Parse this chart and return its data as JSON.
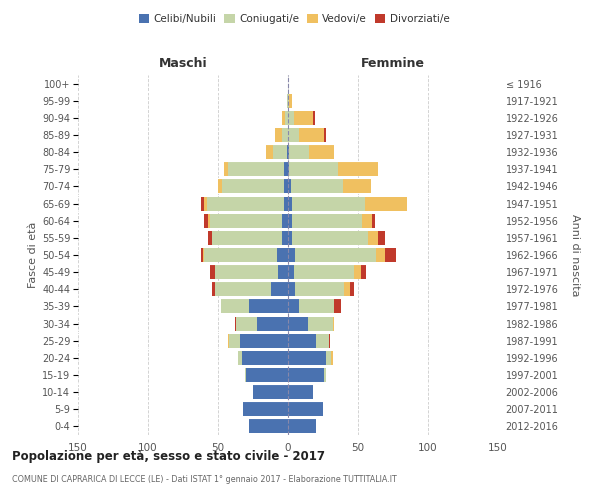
{
  "age_groups": [
    "0-4",
    "5-9",
    "10-14",
    "15-19",
    "20-24",
    "25-29",
    "30-34",
    "35-39",
    "40-44",
    "45-49",
    "50-54",
    "55-59",
    "60-64",
    "65-69",
    "70-74",
    "75-79",
    "80-84",
    "85-89",
    "90-94",
    "95-99",
    "100+"
  ],
  "birth_years": [
    "2012-2016",
    "2007-2011",
    "2002-2006",
    "1997-2001",
    "1992-1996",
    "1987-1991",
    "1982-1986",
    "1977-1981",
    "1972-1976",
    "1967-1971",
    "1962-1966",
    "1957-1961",
    "1952-1956",
    "1947-1951",
    "1942-1946",
    "1937-1941",
    "1932-1936",
    "1927-1931",
    "1922-1926",
    "1917-1921",
    "≤ 1916"
  ],
  "maschi": {
    "celibi": [
      28,
      32,
      25,
      30,
      33,
      34,
      22,
      28,
      12,
      7,
      8,
      4,
      4,
      3,
      3,
      3,
      1,
      0,
      0,
      0,
      0
    ],
    "coniugati": [
      0,
      0,
      0,
      1,
      3,
      8,
      15,
      20,
      40,
      45,
      52,
      50,
      52,
      55,
      44,
      40,
      10,
      4,
      2,
      1,
      0
    ],
    "vedovi": [
      0,
      0,
      0,
      0,
      0,
      1,
      0,
      0,
      0,
      0,
      1,
      0,
      1,
      2,
      3,
      3,
      5,
      5,
      2,
      0,
      0
    ],
    "divorziati": [
      0,
      0,
      0,
      0,
      0,
      0,
      1,
      0,
      2,
      4,
      1,
      3,
      3,
      2,
      0,
      0,
      0,
      0,
      0,
      0,
      0
    ]
  },
  "femmine": {
    "nubili": [
      20,
      25,
      18,
      26,
      27,
      20,
      14,
      8,
      5,
      4,
      5,
      3,
      3,
      3,
      2,
      1,
      1,
      0,
      0,
      0,
      0
    ],
    "coniugate": [
      0,
      0,
      0,
      1,
      4,
      9,
      18,
      25,
      35,
      43,
      58,
      54,
      50,
      52,
      37,
      35,
      14,
      8,
      4,
      1,
      0
    ],
    "vedove": [
      0,
      0,
      0,
      0,
      1,
      0,
      1,
      0,
      4,
      5,
      6,
      7,
      7,
      30,
      20,
      28,
      18,
      18,
      14,
      2,
      0
    ],
    "divorziate": [
      0,
      0,
      0,
      0,
      0,
      1,
      0,
      5,
      3,
      4,
      8,
      5,
      2,
      0,
      0,
      0,
      0,
      1,
      1,
      0,
      0
    ]
  },
  "colors": {
    "celibi": "#4a72b0",
    "coniugati": "#c5d5a8",
    "vedovi": "#f0c060",
    "divorziati": "#c0392b"
  },
  "xlim": 150,
  "title": "Popolazione per età, sesso e stato civile - 2017",
  "subtitle": "COMUNE DI CAPRARICA DI LECCE (LE) - Dati ISTAT 1° gennaio 2017 - Elaborazione TUTTITALIA.IT",
  "ylabel_left": "Fasce di età",
  "ylabel_right": "Anni di nascita",
  "header_maschi": "Maschi",
  "header_femmine": "Femmine",
  "legend_labels": [
    "Celibi/Nubili",
    "Coniugati/e",
    "Vedovi/e",
    "Divorziati/e"
  ]
}
